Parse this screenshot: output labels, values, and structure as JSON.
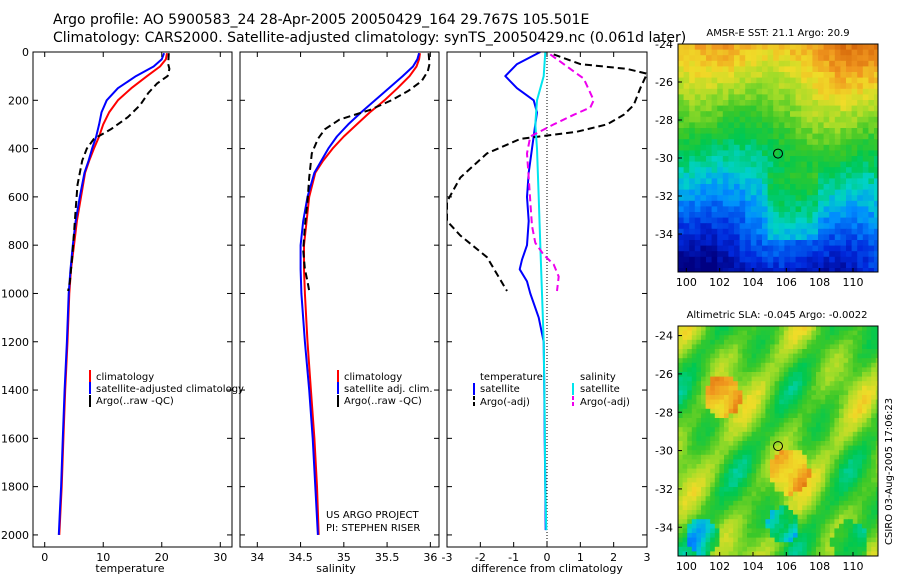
{
  "header": {
    "line1": "Argo profile: AO 5900583_24 28-Apr-2005 20050429_164 29.767S 105.501E",
    "line2": "Climatology: CARS2000. Satellite-adjusted climatology: synTS_20050429.nc (0.061d later)"
  },
  "colors": {
    "climatology": "#ff0000",
    "satellite": "#0000ff",
    "argo": "#000000",
    "salinity_satellite": "#00e5ee",
    "salinity_argo": "#ee00ee"
  },
  "chart_data": [
    {
      "id": "temperature",
      "type": "line",
      "xlabel": "temperature",
      "ylabel": "",
      "xlim": [
        -2,
        32
      ],
      "ylim": [
        2050,
        0
      ],
      "xticks": [
        0,
        10,
        20,
        30
      ],
      "xtick_labels": [
        "0",
        "10",
        "20",
        "30"
      ],
      "yticks": [
        0,
        200,
        400,
        600,
        800,
        1000,
        1200,
        1400,
        1600,
        1800,
        2000
      ],
      "ytick_labels": [
        "0",
        "200",
        "400",
        "600",
        "800",
        "1000",
        "1200",
        "1400",
        "1600",
        "1800",
        "2000"
      ],
      "legend": [
        "climatology",
        "satellite-adjusted climatology",
        "Argo(..raw  -QC)"
      ],
      "series": [
        {
          "name": "climatology",
          "color": "#ff0000",
          "dash": false,
          "x": [
            20.9,
            20.7,
            19.7,
            17.5,
            14.8,
            12.5,
            11.0,
            10.0,
            9.3,
            8.4,
            7.6,
            6.9,
            6.2,
            5.5,
            5.0,
            4.5,
            4.2,
            3.9,
            3.5,
            3.2,
            2.9,
            2.7,
            2.5
          ],
          "y": [
            5,
            30,
            60,
            100,
            150,
            200,
            250,
            300,
            350,
            400,
            450,
            500,
            600,
            700,
            800,
            900,
            1000,
            1200,
            1400,
            1600,
            1800,
            1900,
            2000
          ]
        },
        {
          "name": "satellite-adjusted climatology",
          "color": "#0000ff",
          "dash": false,
          "x": [
            20.4,
            20.0,
            18.6,
            15.6,
            12.5,
            10.6,
            9.7,
            9.3,
            8.8,
            8.1,
            7.5,
            6.8,
            6.0,
            5.3,
            4.8,
            4.4,
            4.1,
            3.8,
            3.4,
            3.1,
            2.8,
            2.6,
            2.4
          ],
          "y": [
            5,
            30,
            60,
            100,
            150,
            200,
            250,
            300,
            350,
            400,
            450,
            500,
            600,
            700,
            800,
            900,
            1000,
            1200,
            1400,
            1600,
            1800,
            1900,
            2000
          ]
        },
        {
          "name": "Argo(..raw  -QC)",
          "color": "#000000",
          "dash": true,
          "x": [
            21.2,
            21.1,
            21.3,
            21.0,
            19.2,
            17.7,
            16.3,
            14.2,
            11.3,
            8.4,
            7.2,
            6.4,
            5.6,
            5.3,
            5.0,
            4.7,
            4.3,
            4.0
          ],
          "y": [
            5,
            50,
            70,
            100,
            130,
            170,
            220,
            270,
            320,
            360,
            400,
            450,
            550,
            650,
            750,
            850,
            950,
            990
          ]
        }
      ]
    },
    {
      "id": "salinity",
      "type": "line",
      "xlabel": "salinity",
      "ylabel": "",
      "xlim": [
        33.8,
        36.1
      ],
      "ylim": [
        2050,
        0
      ],
      "xticks": [
        34,
        34.5,
        35,
        35.5,
        36
      ],
      "xtick_labels": [
        "34",
        "34.5",
        "35",
        "35.5",
        "36"
      ],
      "legend": [
        "climatology",
        "satellite adj. clim.",
        "Argo(..raw  -QC)"
      ],
      "annotation": [
        "US ARGO PROJECT",
        "PI: STEPHEN RISER"
      ],
      "series": [
        {
          "name": "climatology",
          "color": "#ff0000",
          "dash": false,
          "x": [
            35.88,
            35.87,
            35.84,
            35.76,
            35.62,
            35.47,
            35.3,
            35.15,
            35.0,
            34.87,
            34.76,
            34.67,
            34.6,
            34.57,
            34.54,
            34.54,
            34.55,
            34.58,
            34.62,
            34.66,
            34.69,
            34.71
          ],
          "y": [
            5,
            30,
            60,
            100,
            150,
            200,
            250,
            300,
            350,
            400,
            450,
            500,
            600,
            700,
            800,
            900,
            1000,
            1200,
            1400,
            1600,
            1800,
            2000
          ]
        },
        {
          "name": "satellite adj. clim.",
          "color": "#0000ff",
          "dash": false,
          "x": [
            35.87,
            35.85,
            35.8,
            35.68,
            35.52,
            35.36,
            35.2,
            35.05,
            34.92,
            34.82,
            34.74,
            34.66,
            34.58,
            34.53,
            34.5,
            34.5,
            34.51,
            34.55,
            34.6,
            34.64,
            34.67,
            34.7
          ],
          "y": [
            5,
            30,
            60,
            100,
            150,
            200,
            250,
            300,
            350,
            400,
            450,
            500,
            600,
            700,
            800,
            900,
            1000,
            1200,
            1400,
            1600,
            1800,
            2000
          ]
        },
        {
          "name": "Argo(..raw  -QC)",
          "color": "#000000",
          "dash": true,
          "x": [
            35.98,
            35.99,
            35.97,
            35.9,
            35.75,
            35.55,
            35.3,
            34.95,
            34.78,
            34.7,
            34.63,
            34.6,
            34.58,
            34.55,
            34.53,
            34.55,
            34.58,
            34.6
          ],
          "y": [
            5,
            50,
            80,
            120,
            160,
            200,
            240,
            280,
            320,
            360,
            420,
            520,
            620,
            720,
            820,
            900,
            950,
            990
          ]
        }
      ]
    },
    {
      "id": "difference",
      "type": "line",
      "xlabel": "difference from climatology",
      "ylabel": "",
      "xlim": [
        -3,
        3
      ],
      "ylim": [
        2050,
        0
      ],
      "xticks": [
        -3,
        -2,
        -1,
        0,
        1,
        2,
        3
      ],
      "xtick_labels": [
        "-3",
        "-2",
        "-1",
        "0",
        "1",
        "2",
        "3"
      ],
      "legend_left_title": "temperature",
      "legend_right_title": "salinity",
      "legend": [
        "satellite",
        "Argo(-adj)",
        "satellite",
        "Argo(-adj)"
      ],
      "series": [
        {
          "name": "satellite",
          "color": "#0000ff",
          "dash": false,
          "x": [
            -0.2,
            -0.9,
            -1.25,
            -0.9,
            -0.4,
            -0.3,
            -0.35,
            -0.45,
            -0.55,
            -0.6,
            -0.55,
            -0.6,
            -0.75,
            -0.82,
            -0.6,
            -0.5,
            -0.25,
            -0.1,
            -0.08,
            -0.07,
            -0.05,
            -0.04
          ],
          "y": [
            0,
            50,
            100,
            150,
            200,
            250,
            300,
            400,
            500,
            600,
            700,
            800,
            860,
            900,
            950,
            1000,
            1100,
            1200,
            1400,
            1600,
            1800,
            1980
          ]
        },
        {
          "name": "Argo(-adj)",
          "color": "#000000",
          "dash": true,
          "x": [
            0.2,
            1.0,
            2.4,
            3.0,
            2.8,
            2.6,
            2.3,
            1.8,
            0.9,
            -0.8,
            -1.8,
            -2.6,
            -3.0,
            -3.0,
            -2.6,
            -1.8,
            -1.2
          ],
          "y": [
            10,
            50,
            70,
            90,
            150,
            220,
            260,
            300,
            330,
            360,
            420,
            520,
            620,
            700,
            760,
            850,
            990
          ]
        },
        {
          "name": "satellite",
          "color": "#00e5ee",
          "dash": false,
          "x": [
            -0.05,
            -0.1,
            -0.3,
            -0.35,
            -0.3,
            -0.25,
            -0.2,
            -0.15,
            -0.1,
            -0.07,
            -0.05,
            -0.02
          ],
          "y": [
            0,
            100,
            200,
            300,
            400,
            600,
            800,
            1000,
            1200,
            1500,
            1800,
            1980
          ]
        },
        {
          "name": "Argo(-adj)",
          "color": "#ee00ee",
          "dash": true,
          "x": [
            0.1,
            0.6,
            1.1,
            1.4,
            1.3,
            0.8,
            0.2,
            -0.5,
            -0.6,
            -0.55,
            -0.5,
            -0.45,
            -0.35,
            -0.1,
            0.2,
            0.35,
            0.3
          ],
          "y": [
            10,
            60,
            110,
            200,
            230,
            260,
            300,
            350,
            420,
            520,
            620,
            720,
            790,
            840,
            880,
            930,
            990
          ]
        }
      ]
    },
    {
      "id": "sst_map",
      "type": "heatmap",
      "title": "AMSR-E SST: 21.1 Argo: 20.9",
      "xlim": [
        99.5,
        111.5
      ],
      "ylim": [
        -36,
        -24
      ],
      "xticks": [
        100,
        102,
        104,
        106,
        108,
        110
      ],
      "xtick_labels": [
        "100",
        "102",
        "104",
        "106",
        "108",
        "110"
      ],
      "yticks": [
        -24,
        -26,
        -28,
        -30,
        -32,
        -34
      ],
      "ytick_labels": [
        "-24",
        "-26",
        "-28",
        "-30",
        "-32",
        "-34"
      ],
      "marker": {
        "lon": 105.501,
        "lat": -29.767
      }
    },
    {
      "id": "sla_map",
      "type": "heatmap",
      "title": "Altimetric SLA: -0.045 Argo: -0.0022",
      "xlim": [
        99.5,
        111.5
      ],
      "ylim": [
        -35.5,
        -23.5
      ],
      "xticks": [
        100,
        102,
        104,
        106,
        108,
        110
      ],
      "xtick_labels": [
        "100",
        "102",
        "104",
        "106",
        "108",
        "110"
      ],
      "yticks": [
        -24,
        -26,
        -28,
        -30,
        -32,
        -34
      ],
      "ytick_labels": [
        "-24",
        "-26",
        "-28",
        "-30",
        "-32",
        "-34"
      ],
      "marker": {
        "lon": 105.501,
        "lat": -29.767
      }
    }
  ],
  "footer_stamp": "CSIRO 03-Aug-2005 17:06:23"
}
